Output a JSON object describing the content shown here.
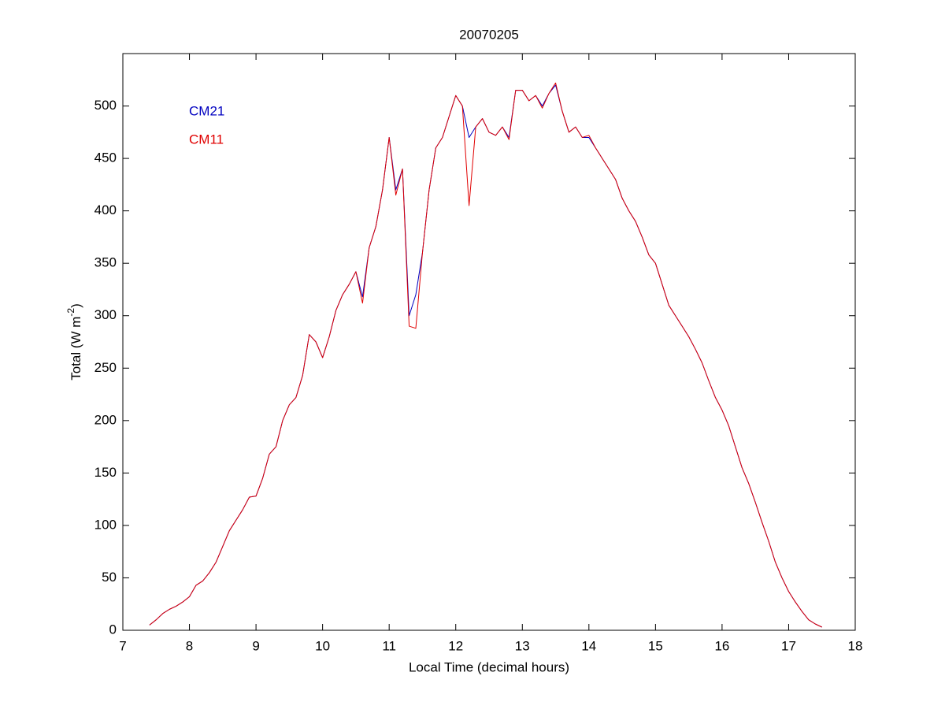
{
  "chart_data": {
    "type": "line",
    "title": "20070205",
    "xlabel": "Local Time (decimal hours)",
    "ylabel": {
      "text": "Total (W m",
      "superscript": "-2",
      "suffix": ")"
    },
    "x": [
      7.4,
      7.5,
      7.6,
      7.7,
      7.8,
      7.9,
      8.0,
      8.1,
      8.2,
      8.3,
      8.4,
      8.5,
      8.6,
      8.7,
      8.8,
      8.9,
      9.0,
      9.1,
      9.2,
      9.3,
      9.4,
      9.5,
      9.6,
      9.7,
      9.8,
      9.9,
      10.0,
      10.1,
      10.2,
      10.3,
      10.4,
      10.5,
      10.6,
      10.7,
      10.8,
      10.9,
      11.0,
      11.1,
      11.2,
      11.3,
      11.4,
      11.5,
      11.6,
      11.7,
      11.8,
      11.9,
      12.0,
      12.1,
      12.2,
      12.3,
      12.4,
      12.5,
      12.6,
      12.7,
      12.8,
      12.9,
      13.0,
      13.1,
      13.2,
      13.3,
      13.4,
      13.5,
      13.6,
      13.7,
      13.8,
      13.9,
      14.0,
      14.1,
      14.2,
      14.3,
      14.4,
      14.5,
      14.6,
      14.7,
      14.8,
      14.9,
      15.0,
      15.1,
      15.2,
      15.3,
      15.4,
      15.5,
      15.6,
      15.7,
      15.8,
      15.9,
      16.0,
      16.1,
      16.2,
      16.3,
      16.4,
      16.5,
      16.6,
      16.7,
      16.8,
      16.9,
      17.0,
      17.1,
      17.2,
      17.3,
      17.4,
      17.5
    ],
    "series": [
      {
        "name": "CM21",
        "color": "#0000c0",
        "values": [
          5,
          10,
          16,
          20,
          23,
          27,
          32,
          43,
          47,
          55,
          65,
          80,
          95,
          105,
          115,
          127,
          128,
          145,
          168,
          175,
          200,
          215,
          222,
          243,
          282,
          275,
          260,
          280,
          305,
          320,
          330,
          342,
          318,
          365,
          385,
          420,
          470,
          420,
          440,
          300,
          320,
          360,
          420,
          460,
          470,
          490,
          510,
          500,
          470,
          480,
          488,
          475,
          472,
          480,
          470,
          515,
          515,
          505,
          510,
          500,
          512,
          520,
          495,
          475,
          480,
          470,
          470,
          460,
          450,
          440,
          430,
          412,
          400,
          390,
          375,
          358,
          350,
          330,
          310,
          300,
          290,
          280,
          268,
          255,
          238,
          222,
          210,
          195,
          175,
          155,
          140,
          122,
          103,
          85,
          65,
          50,
          37,
          27,
          18,
          10,
          6,
          3
        ]
      },
      {
        "name": "CM11",
        "color": "#e00000",
        "values": [
          5,
          10,
          16,
          20,
          23,
          27,
          32,
          43,
          47,
          55,
          65,
          80,
          95,
          105,
          115,
          127,
          128,
          145,
          168,
          175,
          200,
          215,
          222,
          243,
          282,
          275,
          260,
          280,
          305,
          320,
          330,
          342,
          312,
          365,
          385,
          420,
          470,
          415,
          440,
          290,
          288,
          360,
          420,
          460,
          470,
          490,
          510,
          500,
          405,
          480,
          488,
          475,
          472,
          480,
          468,
          515,
          515,
          505,
          510,
          498,
          512,
          522,
          495,
          475,
          480,
          470,
          472,
          460,
          450,
          440,
          430,
          412,
          400,
          390,
          375,
          358,
          350,
          330,
          310,
          300,
          290,
          280,
          268,
          255,
          238,
          222,
          210,
          195,
          175,
          155,
          140,
          122,
          103,
          85,
          65,
          50,
          37,
          27,
          18,
          10,
          6,
          3
        ]
      }
    ],
    "xlim": [
      7,
      18
    ],
    "xticks": [
      7,
      8,
      9,
      10,
      11,
      12,
      13,
      14,
      15,
      16,
      17,
      18
    ],
    "ylim": [
      0,
      550
    ],
    "yticks": [
      0,
      50,
      100,
      150,
      200,
      250,
      300,
      350,
      400,
      450,
      500
    ]
  }
}
